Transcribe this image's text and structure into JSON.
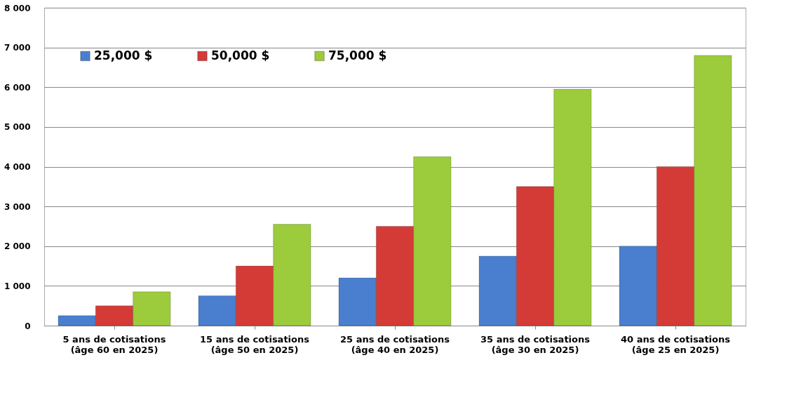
{
  "chart_data": {
    "type": "bar",
    "categories": [
      "5 ans de cotisations\n(âge 60 en 2025)",
      "15 ans de cotisations\n(âge 50 en 2025)",
      "25 ans de cotisations\n(âge 40 en 2025)",
      "35 ans de cotisations\n(âge 30 en 2025)",
      "40 ans de cotisations\n(âge 25 en 2025)"
    ],
    "series": [
      {
        "name": "25,000 $",
        "color": "#4a7fcf",
        "values": [
          250,
          750,
          1200,
          1750,
          2000
        ]
      },
      {
        "name": "50,000 $",
        "color": "#d43b36",
        "values": [
          500,
          1500,
          2500,
          3500,
          4000
        ]
      },
      {
        "name": "75,000 $",
        "color": "#9ccc3c",
        "values": [
          850,
          2550,
          4250,
          5950,
          6800
        ]
      }
    ],
    "ylim": [
      0,
      8000
    ],
    "yticks": [
      0,
      {
        "value": 1000,
        "label": "1 000"
      },
      {
        "value": 2000,
        "label": "2 000"
      },
      {
        "value": 3000,
        "label": "3 000"
      },
      {
        "value": 4000,
        "label": "4 000"
      },
      {
        "value": 5000,
        "label": "5 000"
      },
      {
        "value": 6000,
        "label": "6 000"
      },
      {
        "value": 7000,
        "label": "7 000"
      },
      {
        "value": 8000,
        "label": "8 000"
      }
    ],
    "grid": "y",
    "legend": "top left"
  }
}
